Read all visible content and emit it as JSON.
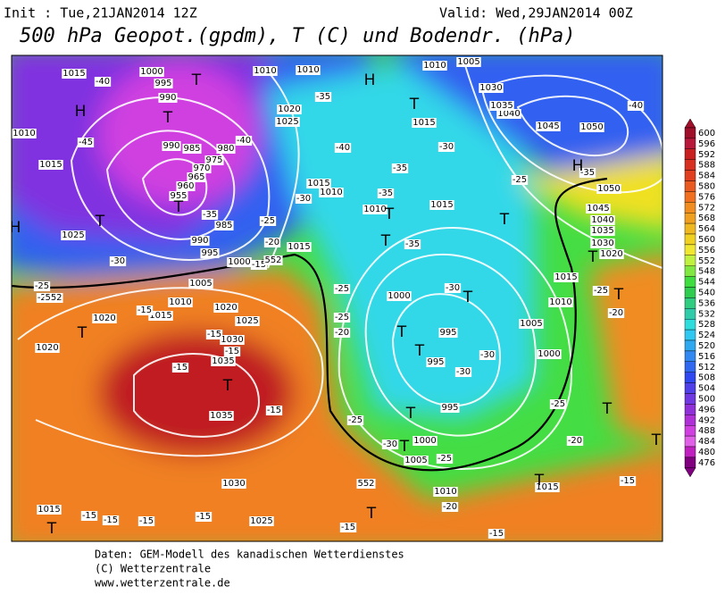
{
  "header": {
    "init": "Init : Tue,21JAN2014 12Z",
    "valid": "Valid: Wed,29JAN2014 00Z",
    "title": "500 hPa Geopot.(gpdm), T (C) und Bodendr. (hPa)"
  },
  "map": {
    "pressure_labels": [
      "1015",
      "1000",
      "995",
      "990",
      "990",
      "985",
      "980",
      "975",
      "970",
      "965",
      "960",
      "955",
      "985",
      "990",
      "995",
      "1000",
      "1005",
      "1010",
      "1015",
      "1020",
      "1025",
      "1030",
      "1035",
      "1035",
      "1030",
      "1025",
      "1015",
      "1020",
      "1020",
      "1025",
      "1010",
      "1015",
      "1010",
      "1015",
      "1015",
      "1010",
      "1000",
      "995",
      "995",
      "995",
      "1000",
      "1005",
      "1010",
      "1015",
      "1005",
      "1000",
      "1010",
      "1015",
      "1020",
      "1030",
      "1035",
      "1040",
      "1045",
      "1050",
      "1045",
      "1050",
      "1040",
      "1035",
      "1030",
      "1005",
      "1010",
      "1010",
      "1010",
      "1020",
      "1025",
      "1015",
      "1015"
    ],
    "temperature_labels": [
      "-40",
      "-45",
      "-40",
      "-35",
      "-35",
      "-35",
      "-35",
      "-30",
      "-30",
      "-25",
      "-20",
      "-15",
      "-15",
      "-15",
      "-15",
      "-15",
      "-25",
      "-25",
      "-20",
      "-25",
      "-30",
      "-30",
      "-30",
      "-30",
      "-25",
      "-25",
      "-20",
      "-20",
      "-15",
      "-25",
      "-20",
      "-15",
      "-15",
      "-15",
      "-15",
      "-15",
      "-15",
      "-40",
      "-35",
      "-30",
      "-25",
      "-25",
      "-20",
      "-15",
      "-40",
      "-35"
    ],
    "contour_labels": [
      "552",
      "552",
      "552"
    ],
    "symbols": [
      "H",
      "H",
      "H",
      "H",
      "T",
      "T",
      "T",
      "T",
      "T",
      "T",
      "T",
      "T",
      "T",
      "T",
      "T",
      "T",
      "T",
      "T",
      "T",
      "T",
      "T",
      "T",
      "T",
      "T",
      "T",
      "T"
    ]
  },
  "legend": {
    "levels": [
      {
        "label": "600",
        "color": "#a0102a"
      },
      {
        "label": "596",
        "color": "#b8183a"
      },
      {
        "label": "592",
        "color": "#c82020"
      },
      {
        "label": "588",
        "color": "#d83020"
      },
      {
        "label": "584",
        "color": "#e04020"
      },
      {
        "label": "580",
        "color": "#e85a20"
      },
      {
        "label": "576",
        "color": "#f07020"
      },
      {
        "label": "572",
        "color": "#f08c20"
      },
      {
        "label": "568",
        "color": "#f0a020"
      },
      {
        "label": "564",
        "color": "#f0b820"
      },
      {
        "label": "560",
        "color": "#f0d020"
      },
      {
        "label": "556",
        "color": "#f0e830"
      },
      {
        "label": "552",
        "color": "#c0f040"
      },
      {
        "label": "548",
        "color": "#80e840"
      },
      {
        "label": "544",
        "color": "#40dd40"
      },
      {
        "label": "540",
        "color": "#30cc50"
      },
      {
        "label": "536",
        "color": "#30cc80"
      },
      {
        "label": "532",
        "color": "#30ccaa"
      },
      {
        "label": "528",
        "color": "#30dddd"
      },
      {
        "label": "524",
        "color": "#30c8f0"
      },
      {
        "label": "520",
        "color": "#30a8f0"
      },
      {
        "label": "516",
        "color": "#3088f0"
      },
      {
        "label": "512",
        "color": "#3068f0"
      },
      {
        "label": "508",
        "color": "#3048f0"
      },
      {
        "label": "504",
        "color": "#5040e8"
      },
      {
        "label": "500",
        "color": "#7038e0"
      },
      {
        "label": "496",
        "color": "#9030d8"
      },
      {
        "label": "492",
        "color": "#b030d8"
      },
      {
        "label": "488",
        "color": "#d040e0"
      },
      {
        "label": "484",
        "color": "#e060e8"
      },
      {
        "label": "480",
        "color": "#c020c0"
      },
      {
        "label": "476",
        "color": "#800080"
      }
    ]
  },
  "footer": {
    "lines": [
      "Daten: GEM-Modell des kanadischen Wetterdienstes",
      "(C) Wetterzentrale",
      "www.wetterzentrale.de"
    ]
  }
}
